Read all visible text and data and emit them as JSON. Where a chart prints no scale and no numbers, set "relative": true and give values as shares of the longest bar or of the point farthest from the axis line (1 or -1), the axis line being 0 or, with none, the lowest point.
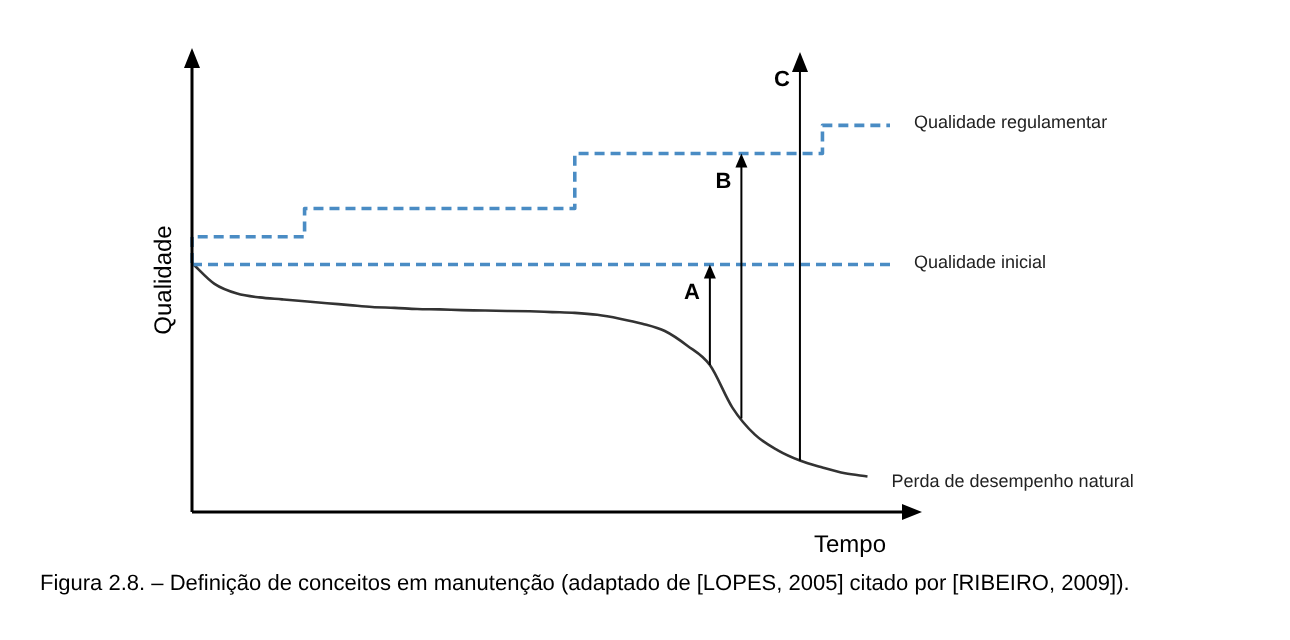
{
  "chart_data": {
    "type": "line",
    "relative": true,
    "xlabel": "Tempo",
    "ylabel": "Qualidade",
    "grid": false,
    "legend": false,
    "marker": "none",
    "categories": [
      null,
      null,
      null,
      null,
      null,
      null,
      null,
      null,
      null,
      null,
      null,
      null,
      null,
      null,
      null,
      null,
      null,
      null,
      null,
      null,
      null,
      null,
      null,
      null,
      null,
      null,
      null,
      null,
      null,
      null,
      null,
      null
    ],
    "series": [
      {
        "name": "Qualidade regulamentar",
        "type": "step",
        "color": "#4a8cc4",
        "line_style": "dashed",
        "values": [
          0.644,
          0.712,
          0.712,
          0.712,
          0.712,
          0.712,
          0.785,
          0.785,
          0.785,
          0.785,
          0.785,
          0.785,
          0.785,
          0.785,
          0.785,
          0.785,
          0.785,
          0.785,
          0.927,
          0.927,
          0.927,
          0.927,
          0.927,
          0.927,
          0.927,
          0.927,
          0.927,
          0.927,
          0.927,
          1,
          1,
          1
        ]
      },
      {
        "name": "Qualidade inicial",
        "color": "#4a8cc4",
        "line_style": "dashed",
        "values": [
          0.64,
          0.64,
          0.64,
          0.64,
          0.64,
          0.64,
          0.64,
          0.64,
          0.64,
          0.64,
          0.64,
          0.64,
          0.64,
          0.64,
          0.64,
          0.64,
          0.64,
          0.64,
          0.64,
          0.64,
          0.64,
          0.64,
          0.64,
          0.64,
          0.64,
          0.64,
          0.64,
          0.64,
          0.64,
          0.64,
          0.64,
          0.64
        ]
      },
      {
        "name": "Perda de desempenho natural",
        "color": "#333333",
        "line_style": "solid",
        "values": [
          0.644,
          0.59,
          0.565,
          0.555,
          0.55,
          0.545,
          0.54,
          0.535,
          0.53,
          0.528,
          0.525,
          0.524,
          0.522,
          0.521,
          0.52,
          0.519,
          0.517,
          0.515,
          0.51,
          0.5,
          0.487,
          0.468,
          0.43,
          0.38,
          0.27,
          0.2,
          0.16,
          0.133,
          0.115,
          0.1,
          0.092,
          null
        ]
      }
    ],
    "annotations": [
      "A",
      "B",
      "C",
      "Figura 2.8. – Definição de conceitos em manutenção (adaptado de [LOPES, 2005] citado por [RIBEIRO, 2009])."
    ]
  }
}
